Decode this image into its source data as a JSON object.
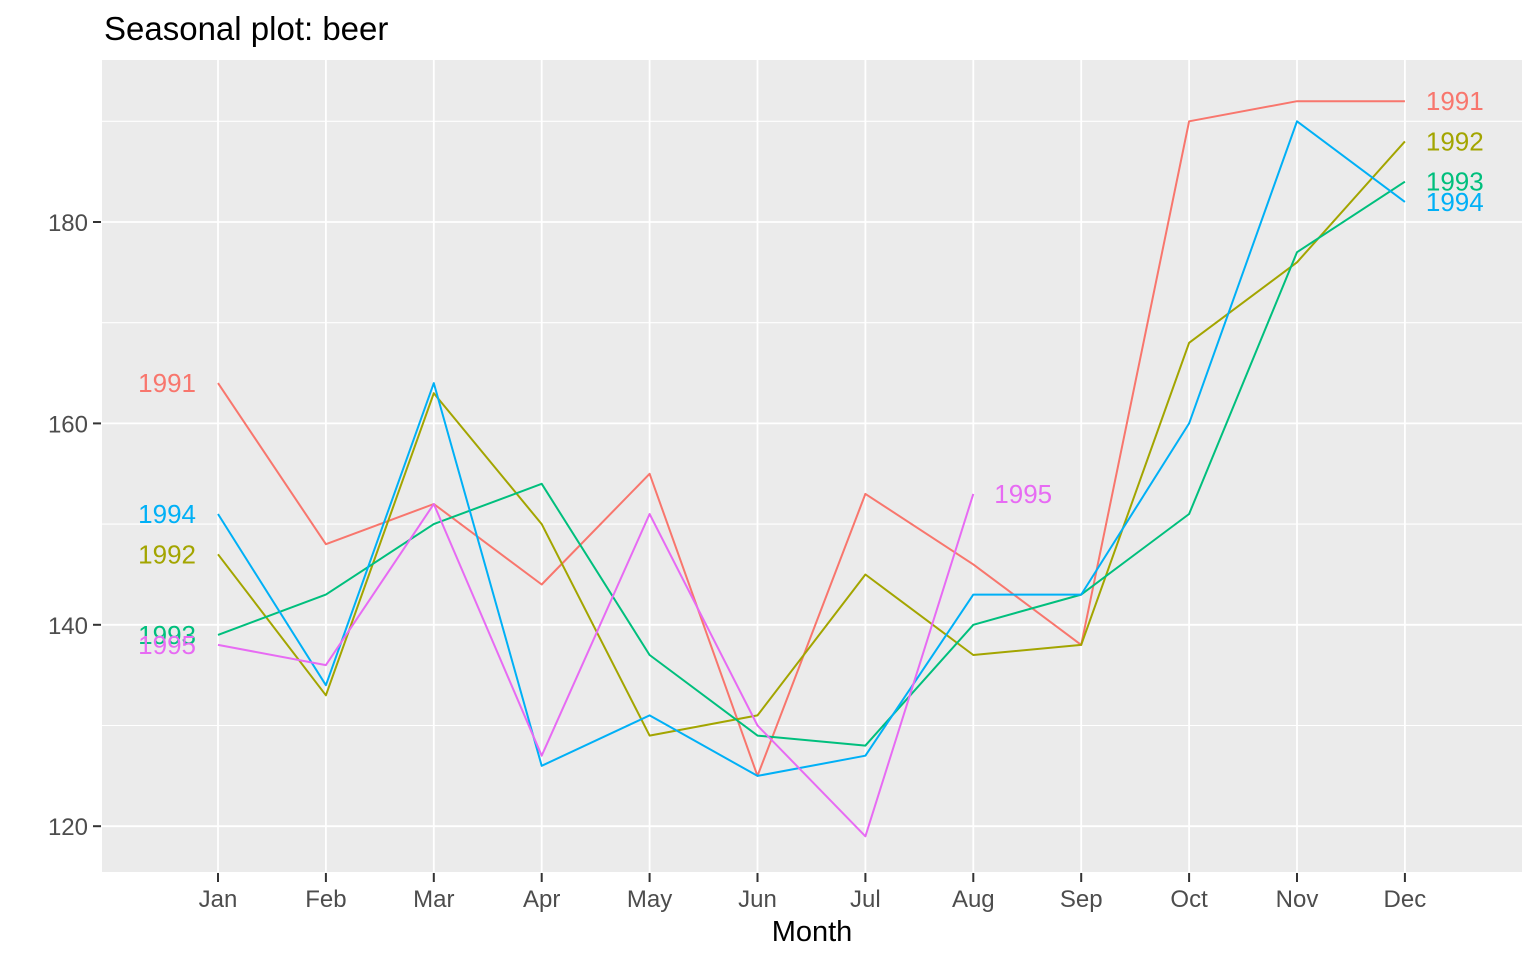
{
  "chart_data": {
    "type": "line",
    "title": "Seasonal plot: beer",
    "xlabel": "Month",
    "ylabel": "",
    "categories": [
      "Jan",
      "Feb",
      "Mar",
      "Apr",
      "May",
      "Jun",
      "Jul",
      "Aug",
      "Sep",
      "Oct",
      "Nov",
      "Dec"
    ],
    "y_ticks": [
      120,
      140,
      160,
      180
    ],
    "y_minor_gridlines": [
      130,
      150,
      170,
      190
    ],
    "ylim": [
      115.5,
      196
    ],
    "xlim_months": [
      1,
      12
    ],
    "grid": "horizontal major+minor and vertical major white gridlines on gray panel",
    "legend_position": "direct labels at line start and line end, colored by series",
    "series": [
      {
        "name": "1991",
        "color": "#F8766D",
        "values": [
          164,
          148,
          152,
          144,
          155,
          125,
          153,
          146,
          138,
          190,
          192,
          192
        ]
      },
      {
        "name": "1992",
        "color": "#A3A500",
        "values": [
          147,
          133,
          163,
          150,
          129,
          131,
          145,
          137,
          138,
          168,
          176,
          188
        ]
      },
      {
        "name": "1993",
        "color": "#00BF7D",
        "values": [
          139,
          143,
          150,
          154,
          137,
          129,
          128,
          140,
          143,
          151,
          177,
          184
        ]
      },
      {
        "name": "1994",
        "color": "#00B0F6",
        "values": [
          151,
          134,
          164,
          126,
          131,
          125,
          127,
          143,
          143,
          160,
          190,
          182
        ]
      },
      {
        "name": "1995",
        "color": "#E76BF3",
        "values": [
          138,
          136,
          152,
          127,
          151,
          130,
          119,
          153
        ]
      }
    ],
    "colors": {
      "panel_bg": "#EBEBEB",
      "grid": "#FFFFFF",
      "axis_text": "#4D4D4D",
      "tick_marks": "#333333",
      "title_text": "#000000"
    }
  }
}
